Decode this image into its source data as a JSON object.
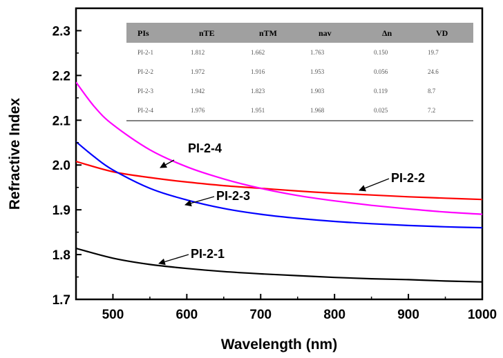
{
  "chart_data": {
    "type": "line",
    "xlabel": "Wavelength (nm)",
    "ylabel": "Refractive Index",
    "xlim": [
      450,
      1000
    ],
    "ylim": [
      1.7,
      2.35
    ],
    "xticks": [
      500,
      600,
      700,
      800,
      900,
      1000
    ],
    "yticks": [
      1.7,
      1.8,
      1.9,
      2.0,
      2.1,
      2.2,
      2.3
    ],
    "grid": false,
    "legend": "none",
    "series": [
      {
        "name": "PI-2-1",
        "color": "#000000",
        "x": [
          450,
          500,
          550,
          600,
          650,
          700,
          750,
          800,
          850,
          900,
          950,
          1000
        ],
        "y": [
          1.814,
          1.792,
          1.778,
          1.769,
          1.762,
          1.757,
          1.753,
          1.749,
          1.746,
          1.744,
          1.741,
          1.739
        ]
      },
      {
        "name": "PI-2-2",
        "color": "#ff0000",
        "x": [
          450,
          500,
          550,
          600,
          650,
          700,
          750,
          800,
          850,
          900,
          950,
          1000
        ],
        "y": [
          2.008,
          1.985,
          1.972,
          1.962,
          1.954,
          1.948,
          1.942,
          1.937,
          1.933,
          1.929,
          1.926,
          1.923
        ]
      },
      {
        "name": "PI-2-3",
        "color": "#0000ff",
        "x": [
          450,
          475,
          500,
          550,
          600,
          650,
          700,
          750,
          800,
          850,
          900,
          950,
          1000
        ],
        "y": [
          2.052,
          2.018,
          1.989,
          1.948,
          1.922,
          1.903,
          1.89,
          1.881,
          1.874,
          1.869,
          1.865,
          1.862,
          1.86
        ]
      },
      {
        "name": "PI-2-4",
        "color": "#ff00ff",
        "x": [
          450,
          475,
          500,
          550,
          600,
          650,
          700,
          750,
          800,
          850,
          900,
          950,
          1000
        ],
        "y": [
          2.185,
          2.13,
          2.09,
          2.034,
          1.996,
          1.969,
          1.948,
          1.932,
          1.92,
          1.91,
          1.902,
          1.895,
          1.89
        ]
      }
    ],
    "annotations": [
      {
        "text": "PI-2-4",
        "target_series": "PI-2-4"
      },
      {
        "text": "PI-2-2",
        "target_series": "PI-2-2"
      },
      {
        "text": "PI-2-3",
        "target_series": "PI-2-3"
      },
      {
        "text": "PI-2-1",
        "target_series": "PI-2-1"
      }
    ],
    "inset_table": {
      "headers": [
        "PIs",
        "nTE",
        "nTM",
        "nav",
        "Δn",
        "VD"
      ],
      "rows": [
        [
          "PI-2-1",
          "1.812",
          "1.662",
          "1.763",
          "0.150",
          "19.7"
        ],
        [
          "PI-2-2",
          "1.972",
          "1.916",
          "1.953",
          "0.056",
          "24.6"
        ],
        [
          "PI-2-3",
          "1.942",
          "1.823",
          "1.903",
          "0.119",
          "8.7"
        ],
        [
          "PI-2-4",
          "1.976",
          "1.951",
          "1.968",
          "0.025",
          "7.2"
        ]
      ]
    }
  }
}
